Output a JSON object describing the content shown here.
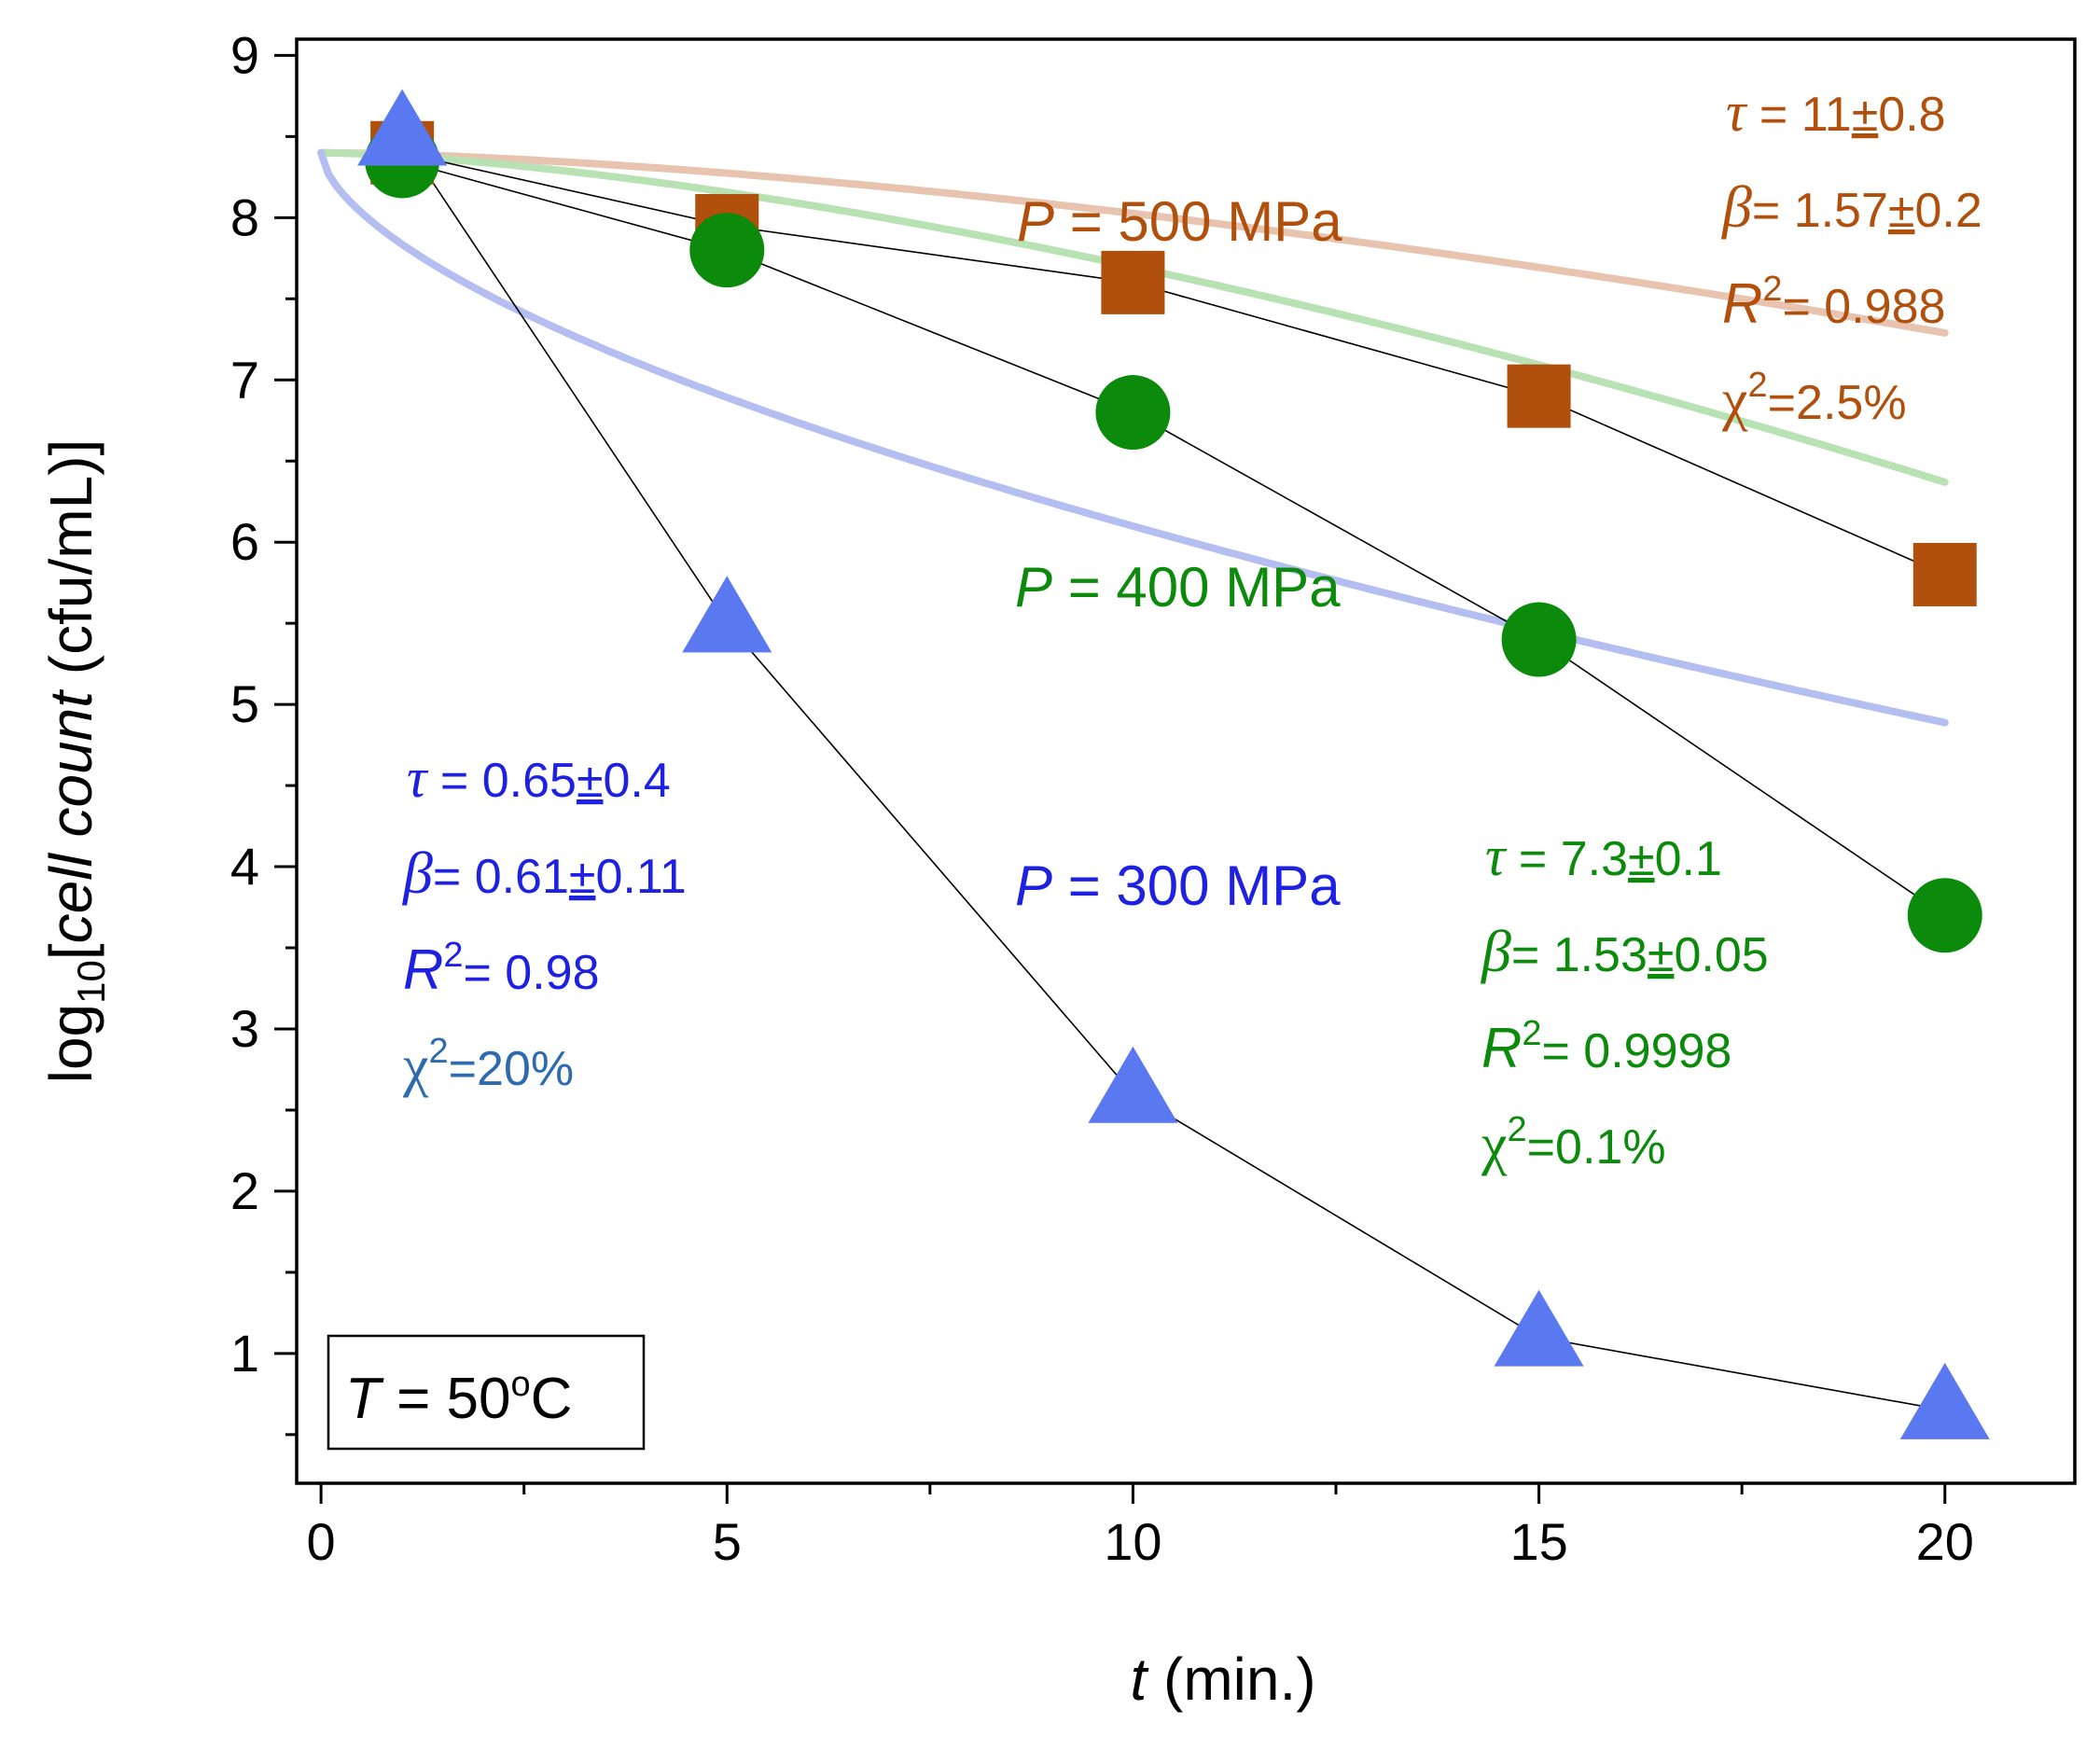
{
  "chart_data": {
    "type": "scatter",
    "title": "",
    "xlabel": {
      "var": "t",
      "unit": "(min.)"
    },
    "ylabel": {
      "prefix": "log",
      "sub": "10",
      "open": "[",
      "italic": "cell count",
      "unit": " (cfu/mL)]"
    },
    "xlim": [
      -0.3,
      21.6
    ],
    "ylim": [
      0.2,
      9.1
    ],
    "x_ticks": [
      0,
      5,
      10,
      15,
      20
    ],
    "y_ticks": [
      1,
      2,
      3,
      4,
      5,
      6,
      7,
      8,
      9
    ],
    "x": [
      1,
      5,
      10,
      15,
      20
    ],
    "series": [
      {
        "name": "P = 500 MPa",
        "label_var": "P",
        "label_rest": " = 500 MPa",
        "marker": "square",
        "color": "#B0500C",
        "fit_color": "#E8C4B0",
        "values": [
          8.4,
          7.95,
          7.6,
          6.9,
          5.8
        ],
        "fit": {
          "tau": 11,
          "beta": 1.57,
          "y0": 8.4
        },
        "stats": {
          "tau": "11",
          "tau_err": "0.8",
          "beta": "1.57",
          "beta_err": "0.2",
          "r2": "0.988",
          "chi2": "=2.5%"
        }
      },
      {
        "name": "P = 400 MPa",
        "label_var": "P",
        "label_rest": " = 400 MPa",
        "marker": "circle",
        "color": "#0C8A0C",
        "fit_color": "#B8E2B4",
        "values": [
          8.35,
          7.8,
          6.8,
          5.4,
          3.7
        ],
        "fit": {
          "tau": 7.3,
          "beta": 1.53,
          "y0": 8.4
        },
        "stats": {
          "tau": "7.3",
          "tau_err": "0.1",
          "beta": "1.53",
          "beta_err": "0.05",
          "r2": "0.9998",
          "chi2": "=0.1%"
        }
      },
      {
        "name": "P = 300 MPa",
        "label_var": "P",
        "label_rest": " = 300 MPa",
        "marker": "triangle",
        "color": "#5A78F0",
        "text_color": "#1E22E0",
        "fit_color": "#B4BEF0",
        "values": [
          8.5,
          5.5,
          2.6,
          1.1,
          0.65
        ],
        "fit": {
          "tau": 0.65,
          "beta": 0.61,
          "y0": 8.4
        },
        "stats": {
          "tau": "0.65",
          "tau_err": "0.4",
          "beta": "0.61",
          "beta_err": "0.11",
          "r2": "0.98",
          "chi2": "=20%"
        }
      }
    ],
    "annotation_box": {
      "var": "T",
      "rest": " = 50",
      "deg": "o",
      "unit": "C"
    },
    "symbols": {
      "tau": "τ",
      "beta": "β",
      "chi": "χ",
      "pm": "±",
      "r": "R",
      "sq": "2",
      "eq": "= "
    },
    "colors": {
      "chi2_label_300": "#2E6AAE",
      "axis": "#000000",
      "connector": "#000000"
    }
  }
}
